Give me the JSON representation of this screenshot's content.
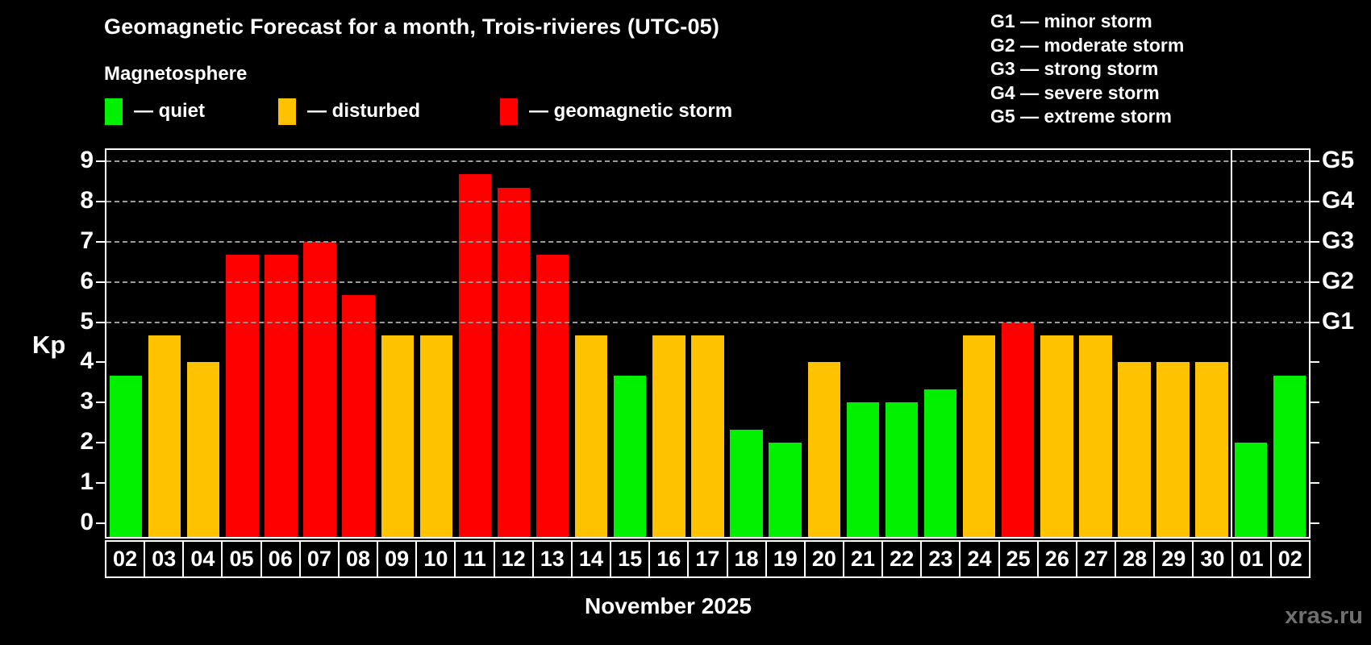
{
  "header": {
    "title": "Geomagnetic Forecast for a month, Trois-rivieres (UTC-05)",
    "subtitle": "Magnetosphere"
  },
  "legend": {
    "items": [
      {
        "id": "quiet",
        "label": "— quiet",
        "color": "#00f000"
      },
      {
        "id": "disturbed",
        "label": "— disturbed",
        "color": "#fec200"
      },
      {
        "id": "storm",
        "label": "— geomagnetic storm",
        "color": "#fe0000"
      }
    ]
  },
  "storm_scale": {
    "lines": [
      "G1 — minor storm",
      "G2 — moderate storm",
      "G3 — strong storm",
      "G4 — severe storm",
      "G5 — extreme storm"
    ]
  },
  "chart_data": {
    "type": "bar",
    "title": "Geomagnetic Forecast for a month, Trois-rivieres (UTC-05)",
    "xlabel": "November 2025",
    "ylabel": "Kp",
    "ylim": [
      0,
      9.4
    ],
    "yticks": [
      0,
      1,
      2,
      3,
      4,
      5,
      6,
      7,
      8,
      9
    ],
    "grid": "dashed horizontal at Kp 5-9 only",
    "gridlines_at": [
      5,
      6,
      7,
      8,
      9
    ],
    "right_axis_labels": [
      {
        "kp": 5,
        "label": "G1"
      },
      {
        "kp": 6,
        "label": "G2"
      },
      {
        "kp": 7,
        "label": "G3"
      },
      {
        "kp": 8,
        "label": "G4"
      },
      {
        "kp": 9,
        "label": "G5"
      }
    ],
    "legend_position": "above chart, top-left",
    "month_boundary_after_index": 28,
    "categories": [
      "02",
      "03",
      "04",
      "05",
      "06",
      "07",
      "08",
      "09",
      "10",
      "11",
      "12",
      "13",
      "14",
      "15",
      "16",
      "17",
      "18",
      "19",
      "20",
      "21",
      "22",
      "23",
      "24",
      "25",
      "26",
      "27",
      "28",
      "29",
      "30",
      "01",
      "02"
    ],
    "values": [
      3.67,
      4.67,
      4.0,
      6.67,
      6.67,
      7.0,
      5.67,
      4.67,
      4.67,
      8.67,
      8.33,
      6.67,
      4.67,
      3.67,
      4.67,
      4.67,
      2.33,
      2.0,
      4.0,
      3.0,
      3.0,
      3.33,
      4.67,
      5.0,
      4.67,
      4.67,
      4.0,
      4.0,
      4.0,
      2.0,
      3.67
    ],
    "levels": [
      "quiet",
      "disturbed",
      "disturbed",
      "storm",
      "storm",
      "storm",
      "storm",
      "disturbed",
      "disturbed",
      "storm",
      "storm",
      "storm",
      "disturbed",
      "quiet",
      "disturbed",
      "disturbed",
      "quiet",
      "quiet",
      "disturbed",
      "quiet",
      "quiet",
      "quiet",
      "disturbed",
      "storm",
      "disturbed",
      "disturbed",
      "disturbed",
      "disturbed",
      "disturbed",
      "quiet",
      "quiet"
    ],
    "level_colors": {
      "quiet": "#00f000",
      "disturbed": "#fec200",
      "storm": "#fe0000"
    }
  },
  "footer": {
    "xaxis_title": "November 2025",
    "watermark": "xras.ru"
  }
}
